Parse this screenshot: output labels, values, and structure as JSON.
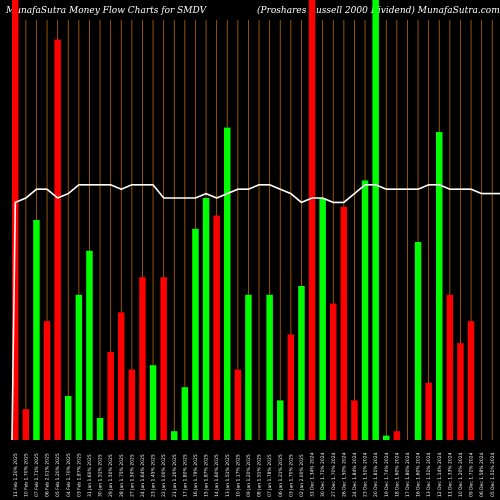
{
  "chart_data": {
    "type": "bar",
    "title": "MunafaSutra  Money Flow  Charts for SMDV",
    "subtitle": "(Proshares Russell 2000  Dividend) MunafaSutra.com",
    "xlabel": "",
    "ylabel": "",
    "ylim": [
      0,
      100
    ],
    "grid": "vertical",
    "categories": [
      "Tue 11 Feb 2025",
      "Mon 10 Feb 2025",
      "Fri 07 Feb 2025",
      "Thu 06 Feb 2025",
      "Wed 05 Feb 2025",
      "Tue 04 Feb 2025",
      "Mon 03 Feb 2025",
      "Fri 31 Jan 2025",
      "Thu 30 Jan 2025",
      "Wed 29 Jan 2025",
      "Tue 28 Jan 2025",
      "Mon 27 Jan 2025",
      "Fri 24 Jan 2025",
      "Thu 23 Jan 2025",
      "Wed 22 Jan 2025",
      "Tue 21 Jan 2025",
      "Fri 17 Jan 2025",
      "Thu 16 Jan 2025",
      "Wed 15 Jan 2025",
      "Tue 14 Jan 2025",
      "Mon 13 Jan 2025",
      "Fri 10 Jan 2025",
      "Thu 09 Jan 2025",
      "Wed 08 Jan 2025",
      "Tue 07 Jan 2025",
      "Mon 06 Jan 2025",
      "Fri 03 Jan 2025",
      "Thu 02 Jan 2025",
      "Tue 31 Dec 2024",
      "Mon 30 Dec 2024",
      "Fri 27 Dec 2024",
      "Thu 26 Dec 2024",
      "Tue 24 Dec 2024",
      "Mon 23 Dec 2024",
      "Fri 20 Dec 2024",
      "Thu 19 Dec 2024",
      "Wed 18 Dec 2024",
      "Tue 17 Dec 2024",
      "Mon 16 Dec 2024",
      "Fri 13 Dec 2024",
      "Thu 12 Dec 2024",
      "Wed 11 Dec 2024",
      "Tue 10 Dec 2024",
      "Mon 09 Dec 2024",
      "Fri 06 Dec 2024",
      "Thu 05 Dec 2024",
      "Wed 04 Dec 2024"
    ],
    "tick_labels": [
      "11 Feb 1.20% 2025",
      "10 Feb 1.70% 2025",
      "07 Feb 1.71% 2025",
      "06 Feb 2.01% 2025",
      "05 Feb 1.20% 2025",
      "04 Feb 1.70% 2025",
      "03 Feb 1.87% 2025",
      "31 Jan 1.60% 2025",
      "30 Jan 1.51% 2025",
      "29 Jan 1.50% 2025",
      "28 Jan 1.75% 2025",
      "27 Jan 1.50% 2025",
      "24 Jan 1.64% 2025",
      "23 Jan 1.45% 2025",
      "22 Jan 1.00% 2025",
      "21 Jan 1.20% 2025",
      "17 Jan 1.80% 2025",
      "16 Jan 1.79% 2025",
      "15 Jan 1.87% 2025",
      "14 Jan 1.60% 2025",
      "13 Jan 1.51% 2025",
      "10 Jan 1.17% 2025",
      "09 Jan 1.20% 2025",
      "08 Jan 1.51% 2025",
      "07 Jan 1.78% 2025",
      "06 Jan 1.21% 2025",
      "03 Jan 1.70% 2025",
      "02 Jan 2.00% 2025",
      "31 Dec 1.34% 2024",
      "30 Dec 1.71% 2024",
      "27 Dec 1.70% 2024",
      "26 Dec 1.50% 2024",
      "24 Dec 1.84% 2024",
      "23 Dec 1.51% 2024",
      "20 Dec 1.81% 2024",
      "19 Dec 1.74% 2024",
      "18 Dec 1.60% 2024",
      "17 Dec 1.80% 2024",
      "16 Dec 1.60% 2024",
      "13 Dec 1.51% 2024",
      "12 Dec 1.14% 2024",
      "11 Dec 1.33% 2024",
      "10 Dec 1.20% 2024",
      "09 Dec 1.71% 2024",
      "06 Dec 1.58% 2024",
      "05 Dec 1.51% 2024",
      "04 Dec 1.60% 2024"
    ],
    "series": [
      {
        "values": [
          100,
          7,
          50,
          27,
          91,
          10,
          33,
          43,
          5,
          20,
          29,
          16,
          37,
          17,
          37,
          2,
          12,
          48,
          55,
          51,
          71,
          16,
          33,
          0,
          33,
          9,
          24,
          35,
          100,
          55,
          31,
          53,
          9,
          59,
          100,
          1,
          2,
          0,
          45,
          13,
          70,
          33,
          22,
          27,
          0,
          0,
          0
        ],
        "directions": [
          "down",
          "down",
          "up",
          "down",
          "down",
          "up",
          "up",
          "up",
          "up",
          "down",
          "down",
          "down",
          "down",
          "up",
          "down",
          "up",
          "up",
          "up",
          "up",
          "down",
          "up",
          "down",
          "up",
          "up",
          "up",
          "up",
          "down",
          "up",
          "down",
          "up",
          "down",
          "down",
          "down",
          "up",
          "up",
          "up",
          "down",
          "up",
          "up",
          "down",
          "up",
          "down",
          "down",
          "down",
          "up",
          "up",
          "up"
        ]
      }
    ],
    "line_series": {
      "values": [
        54,
        55,
        57,
        57,
        55,
        56,
        58,
        58,
        58,
        58,
        57,
        58,
        58,
        58,
        55,
        55,
        55,
        55,
        56,
        55,
        56,
        57,
        57,
        58,
        58,
        57,
        56,
        54,
        55,
        55,
        54,
        54,
        56,
        58,
        58,
        57,
        57,
        57,
        57,
        58,
        58,
        57,
        57,
        57,
        56,
        56,
        56
      ]
    },
    "colors": {
      "up": "#00ff00",
      "down": "#ff0000",
      "grid": "#b86600",
      "line": "#ffffff",
      "background": "#000000"
    }
  }
}
